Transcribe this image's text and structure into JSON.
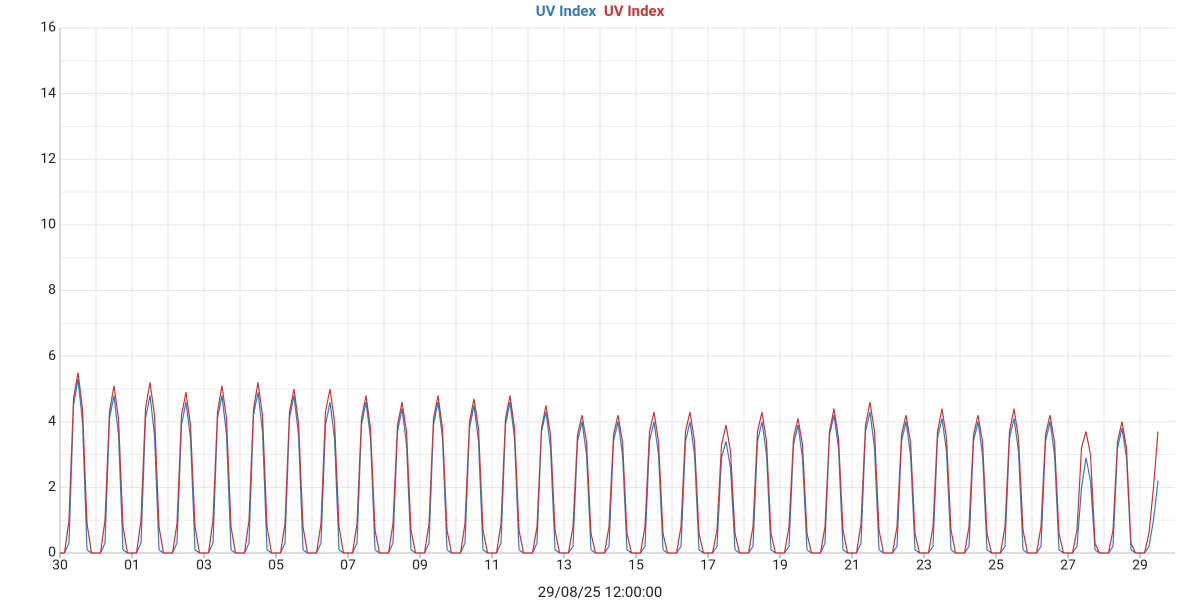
{
  "chart_data": {
    "type": "line",
    "footer": "29/08/25 12:00:00",
    "categories": [
      "30",
      null,
      null,
      null,
      null,
      null,
      null,
      null,
      null,
      null,
      null,
      null,
      null,
      null,
      null,
      null,
      "01",
      null,
      null,
      null,
      null,
      null,
      null,
      null,
      null,
      null,
      null,
      null,
      null,
      null,
      null,
      null,
      "03",
      null,
      null,
      null,
      null,
      null,
      null,
      null,
      null,
      null,
      null,
      null,
      null,
      null,
      null,
      null,
      "05",
      null,
      null,
      null,
      null,
      null,
      null,
      null,
      null,
      null,
      null,
      null,
      null,
      null,
      null,
      null,
      "07",
      null,
      null,
      null,
      null,
      null,
      null,
      null,
      null,
      null,
      null,
      null,
      null,
      null,
      null,
      null,
      "09",
      null,
      null,
      null,
      null,
      null,
      null,
      null,
      null,
      null,
      null,
      null,
      null,
      null,
      null,
      null,
      "11",
      null,
      null,
      null,
      null,
      null,
      null,
      null,
      null,
      null,
      null,
      null,
      null,
      null,
      null,
      null,
      "13",
      null,
      null,
      null,
      null,
      null,
      null,
      null,
      null,
      null,
      null,
      null,
      null,
      null,
      null,
      null,
      "15",
      null,
      null,
      null,
      null,
      null,
      null,
      null,
      null,
      null,
      null,
      null,
      null,
      null,
      null,
      null,
      "17",
      null,
      null,
      null,
      null,
      null,
      null,
      null,
      null,
      null,
      null,
      null,
      null,
      null,
      null,
      null,
      "19",
      null,
      null,
      null,
      null,
      null,
      null,
      null,
      null,
      null,
      null,
      null,
      null,
      null,
      null,
      null,
      "21",
      null,
      null,
      null,
      null,
      null,
      null,
      null,
      null,
      null,
      null,
      null,
      null,
      null,
      null,
      null,
      "23",
      null,
      null,
      null,
      null,
      null,
      null,
      null,
      null,
      null,
      null,
      null,
      null,
      null,
      null,
      null,
      "25",
      null,
      null,
      null,
      null,
      null,
      null,
      null,
      null,
      null,
      null,
      null,
      null,
      null,
      null,
      null,
      "27",
      null,
      null,
      null,
      null,
      null,
      null,
      null,
      null,
      null,
      null,
      null,
      null,
      null,
      null,
      null,
      "29",
      null,
      null,
      null,
      null
    ],
    "series": [
      {
        "name": "UV Index",
        "color": "#3a7ab8",
        "values": [
          0,
          0,
          0.3,
          4.5,
          5.3,
          4.0,
          0.1,
          0,
          0,
          0,
          0.3,
          4.1,
          4.8,
          3.6,
          0.1,
          0,
          0,
          0,
          0.3,
          4.1,
          4.8,
          3.6,
          0.1,
          0,
          0,
          0,
          0.3,
          3.9,
          4.6,
          3.5,
          0.1,
          0,
          0,
          0,
          0.3,
          4.1,
          4.8,
          3.6,
          0.1,
          0,
          0,
          0,
          0.3,
          4.2,
          4.9,
          3.7,
          0.1,
          0,
          0,
          0,
          0.3,
          4.1,
          4.8,
          3.6,
          0.1,
          0,
          0,
          0,
          0.3,
          3.9,
          4.6,
          3.5,
          0.1,
          0,
          0,
          0,
          0.3,
          3.9,
          4.6,
          3.5,
          0.1,
          0,
          0,
          0,
          0.3,
          3.7,
          4.4,
          3.3,
          0.1,
          0,
          0,
          0,
          0.3,
          3.9,
          4.6,
          3.5,
          0.1,
          0,
          0,
          0,
          0.3,
          3.8,
          4.5,
          3.4,
          0.1,
          0,
          0,
          0,
          0.3,
          3.9,
          4.6,
          3.5,
          0.1,
          0,
          0,
          0,
          0.3,
          3.7,
          4.3,
          3.2,
          0.1,
          0,
          0,
          0,
          0.2,
          3.4,
          4.0,
          3.0,
          0.1,
          0,
          0,
          0,
          0.2,
          3.4,
          4.0,
          3.0,
          0.1,
          0,
          0,
          0,
          0.2,
          3.4,
          4.0,
          3.0,
          0.1,
          0,
          0,
          0,
          0.2,
          3.4,
          4.0,
          3.0,
          0.1,
          0,
          0,
          0,
          0.2,
          2.9,
          3.4,
          2.6,
          0.1,
          0,
          0,
          0,
          0.2,
          3.4,
          4.0,
          3.0,
          0.1,
          0,
          0,
          0,
          0.2,
          3.3,
          3.9,
          2.9,
          0.1,
          0,
          0,
          0,
          0.3,
          3.6,
          4.2,
          3.2,
          0.1,
          0,
          0,
          0,
          0.3,
          3.7,
          4.3,
          3.2,
          0.1,
          0,
          0,
          0,
          0.2,
          3.4,
          4.0,
          3.0,
          0.1,
          0,
          0,
          0,
          0.2,
          3.5,
          4.1,
          3.1,
          0.1,
          0,
          0,
          0,
          0.2,
          3.4,
          4.0,
          3.0,
          0.1,
          0,
          0,
          0,
          0.2,
          3.5,
          4.1,
          3.1,
          0.1,
          0,
          0,
          0,
          0.2,
          3.4,
          4.0,
          3.0,
          0.1,
          0,
          0,
          0,
          0.2,
          2.0,
          2.9,
          2.2,
          0.1,
          0,
          0,
          0,
          0.2,
          3.2,
          3.8,
          2.9,
          0.1,
          0,
          0,
          0,
          0.2,
          1.0,
          2.2
        ]
      },
      {
        "name": "UV Index",
        "color": "#c0393b",
        "values": [
          0,
          0,
          1.0,
          4.7,
          5.5,
          4.4,
          0.9,
          0,
          0,
          0,
          1.0,
          4.3,
          5.1,
          4.1,
          0.8,
          0,
          0,
          0,
          1.0,
          4.4,
          5.2,
          4.2,
          0.8,
          0,
          0,
          0,
          0.9,
          4.2,
          4.9,
          3.9,
          0.8,
          0,
          0,
          0,
          1.0,
          4.3,
          5.1,
          4.1,
          0.8,
          0,
          0,
          0,
          1.0,
          4.4,
          5.2,
          4.2,
          0.8,
          0,
          0,
          0,
          0.9,
          4.3,
          5.0,
          4.0,
          0.8,
          0,
          0,
          0,
          0.9,
          4.3,
          5.0,
          4.0,
          0.8,
          0,
          0,
          0,
          0.9,
          4.1,
          4.8,
          3.8,
          0.7,
          0,
          0,
          0,
          0.9,
          3.9,
          4.6,
          3.7,
          0.7,
          0,
          0,
          0,
          0.9,
          4.1,
          4.8,
          3.8,
          0.7,
          0,
          0,
          0,
          0.9,
          4.0,
          4.7,
          3.8,
          0.7,
          0,
          0,
          0,
          0.9,
          4.1,
          4.8,
          3.8,
          0.7,
          0,
          0,
          0,
          0.8,
          3.8,
          4.5,
          3.6,
          0.7,
          0,
          0,
          0,
          0.8,
          3.6,
          4.2,
          3.4,
          0.6,
          0,
          0,
          0,
          0.8,
          3.6,
          4.2,
          3.4,
          0.6,
          0,
          0,
          0,
          0.8,
          3.7,
          4.3,
          3.4,
          0.6,
          0,
          0,
          0,
          0.8,
          3.7,
          4.3,
          3.4,
          0.6,
          0,
          0,
          0,
          0.7,
          3.3,
          3.9,
          3.1,
          0.6,
          0,
          0,
          0,
          0.8,
          3.7,
          4.3,
          3.4,
          0.6,
          0,
          0,
          0,
          0.8,
          3.5,
          4.1,
          3.3,
          0.6,
          0,
          0,
          0,
          0.8,
          3.7,
          4.4,
          3.5,
          0.7,
          0,
          0,
          0,
          0.9,
          3.9,
          4.6,
          3.7,
          0.7,
          0,
          0,
          0,
          0.8,
          3.6,
          4.2,
          3.4,
          0.6,
          0,
          0,
          0,
          0.8,
          3.7,
          4.4,
          3.5,
          0.7,
          0,
          0,
          0,
          0.8,
          3.6,
          4.2,
          3.4,
          0.6,
          0,
          0,
          0,
          0.8,
          3.7,
          4.4,
          3.5,
          0.7,
          0,
          0,
          0,
          0.8,
          3.6,
          4.2,
          3.4,
          0.6,
          0,
          0,
          0,
          0.7,
          3.2,
          3.7,
          3.0,
          0.3,
          0,
          0,
          0,
          0.7,
          3.4,
          4.0,
          3.2,
          0.3,
          0,
          0,
          0,
          0.6,
          2.0,
          3.7
        ]
      }
    ],
    "ylim": [
      0,
      16
    ],
    "yticks": [
      0,
      2,
      4,
      6,
      8,
      10,
      12,
      14,
      16
    ],
    "grid": true
  }
}
